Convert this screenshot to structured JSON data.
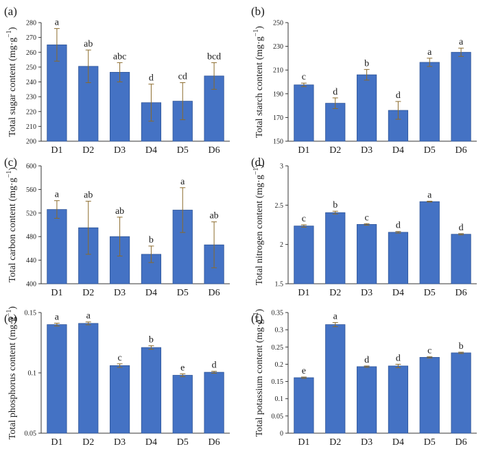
{
  "colors": {
    "bar": "#4472c4",
    "bar_edge": "#2f5597",
    "error": "#8a6a2a",
    "axis": "#333333"
  },
  "chart_data": [
    {
      "type": "bar",
      "panel": "(a)",
      "ylabel_main": "Total sugar content",
      "ylabel_unit": "(mg·g",
      "ylabel_sup": "−1",
      "ylabel_close": ")",
      "categories": [
        "D1",
        "D2",
        "D3",
        "D4",
        "D5",
        "D6"
      ],
      "values": [
        265,
        250.5,
        246.5,
        226,
        227,
        244
      ],
      "errors": [
        11,
        11,
        6.5,
        12.5,
        12.5,
        9
      ],
      "letters": [
        "a",
        "ab",
        "abc",
        "d",
        "cd",
        "bcd"
      ],
      "ylim": [
        200,
        280
      ],
      "yticks": [
        "200",
        "210",
        "220",
        "230",
        "240",
        "250",
        "260",
        "270",
        "280"
      ]
    },
    {
      "type": "bar",
      "panel": "(b)",
      "ylabel_main": "Total starch content",
      "ylabel_unit": "(mg·g",
      "ylabel_sup": "−1",
      "ylabel_close": ")",
      "categories": [
        "D1",
        "D2",
        "D3",
        "D4",
        "D5",
        "D6"
      ],
      "values": [
        197.5,
        182,
        206,
        176,
        216.5,
        225
      ],
      "errors": [
        1.5,
        4.5,
        4.5,
        7.5,
        3.5,
        3.5
      ],
      "letters": [
        "c",
        "d",
        "b",
        "d",
        "a",
        "a"
      ],
      "ylim": [
        150,
        250
      ],
      "yticks": [
        "150",
        "170",
        "190",
        "210",
        "230",
        "250"
      ]
    },
    {
      "type": "bar",
      "panel": "(c)",
      "ylabel_main": "Total carbon content",
      "ylabel_unit": "(mg·g",
      "ylabel_sup": "−1",
      "ylabel_close": ")",
      "categories": [
        "D1",
        "D2",
        "D3",
        "D4",
        "D5",
        "D6"
      ],
      "values": [
        526,
        495,
        480,
        450,
        525,
        466
      ],
      "errors": [
        15,
        45,
        33,
        14,
        38,
        39
      ],
      "letters": [
        "a",
        "ab",
        "ab",
        "b",
        "a",
        "ab"
      ],
      "ylim": [
        400,
        600
      ],
      "yticks": [
        "400",
        "440",
        "480",
        "520",
        "560",
        "600"
      ]
    },
    {
      "type": "bar",
      "panel": "(d)",
      "ylabel_main": "Total nitrogen content",
      "ylabel_unit": "(mg·g",
      "ylabel_sup": "−1",
      "ylabel_close": ")",
      "categories": [
        "D1",
        "D2",
        "D3",
        "D4",
        "D5",
        "D6"
      ],
      "values": [
        2.235,
        2.405,
        2.255,
        2.155,
        2.545,
        2.13
      ],
      "errors": [
        0.015,
        0.018,
        0.01,
        0.01,
        0.006,
        0.008
      ],
      "letters": [
        "c",
        "b",
        "c",
        "d",
        "a",
        "d"
      ],
      "ylim": [
        1.5,
        3
      ],
      "yticks": [
        "1.5",
        "2",
        "2.5",
        "3"
      ]
    },
    {
      "type": "bar",
      "panel": "(e)",
      "ylabel_main": "Total phosphorus content",
      "ylabel_unit": "(mg·g",
      "ylabel_sup": "−1",
      "ylabel_close": ")",
      "categories": [
        "D1",
        "D2",
        "D3",
        "D4",
        "D5",
        "D6"
      ],
      "values": [
        0.14,
        0.141,
        0.106,
        0.121,
        0.098,
        0.1005
      ],
      "errors": [
        0.0012,
        0.0012,
        0.0015,
        0.0015,
        0.0012,
        0.0008
      ],
      "letters": [
        "a",
        "a",
        "c",
        "b",
        "e",
        "d"
      ],
      "ylim": [
        0.05,
        0.15
      ],
      "yticks": [
        "0.05",
        "0.1",
        "0.15"
      ]
    },
    {
      "type": "bar",
      "panel": "(f)",
      "ylabel_main": "Total potassium content",
      "ylabel_unit": "(mg·g",
      "ylabel_sup": "−1",
      "ylabel_close": ")",
      "categories": [
        "D1",
        "D2",
        "D3",
        "D4",
        "D5",
        "D6"
      ],
      "values": [
        0.161,
        0.315,
        0.193,
        0.195,
        0.22,
        0.233
      ],
      "errors": [
        0.002,
        0.006,
        0.002,
        0.005,
        0.002,
        0.002
      ],
      "letters": [
        "e",
        "a",
        "d",
        "d",
        "c",
        "b"
      ],
      "ylim": [
        0,
        0.35
      ],
      "yticks": [
        "0",
        "0.05",
        "0.1",
        "0.15",
        "0.2",
        "0.25",
        "0.3",
        "0.35"
      ]
    }
  ]
}
